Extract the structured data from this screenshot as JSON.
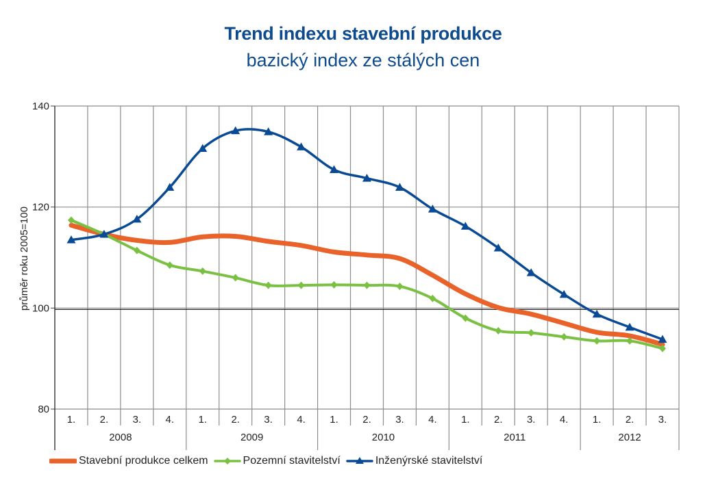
{
  "chart_data": {
    "type": "line",
    "title": "Trend indexu stavební produkce",
    "subtitle": "bazický index ze stálých cen",
    "ylabel": "průměr roku 2005=100",
    "xlabel": "",
    "ylim": [
      80,
      140
    ],
    "yticks": [
      80,
      100,
      120,
      140
    ],
    "grid": true,
    "legend_position": "bottom-left",
    "categories": [
      "1.",
      "2.",
      "3.",
      "4.",
      "1.",
      "2.",
      "3.",
      "4.",
      "1.",
      "2.",
      "3.",
      "4.",
      "1.",
      "2.",
      "3.",
      "4.",
      "1.",
      "2.",
      "3."
    ],
    "groups": [
      {
        "label": "2008",
        "count": 4
      },
      {
        "label": "2009",
        "count": 4
      },
      {
        "label": "2010",
        "count": 4
      },
      {
        "label": "2011",
        "count": 4
      },
      {
        "label": "2012",
        "count": 3
      }
    ],
    "series": [
      {
        "name": "Stavební produkce celkem",
        "color": "#e8622a",
        "marker": "none",
        "values": [
          116.4,
          114.6,
          113.4,
          113.0,
          114.1,
          114.2,
          113.2,
          112.4,
          111.1,
          110.5,
          109.8,
          106.5,
          102.8,
          100.1,
          98.8,
          97.0,
          95.2,
          94.5,
          92.8
        ]
      },
      {
        "name": "Pozemní stavitelství",
        "color": "#7ac143",
        "marker": "diamond",
        "values": [
          117.4,
          114.6,
          111.4,
          108.5,
          107.3,
          106.0,
          104.5,
          104.5,
          104.6,
          104.5,
          104.3,
          101.9,
          98.0,
          95.5,
          95.1,
          94.3,
          93.5,
          93.5,
          92.0
        ]
      },
      {
        "name": "Inženýrské stavitelství",
        "color": "#0a4a94",
        "marker": "triangle",
        "values": [
          113.5,
          114.6,
          117.6,
          123.9,
          131.6,
          135.1,
          134.9,
          131.9,
          127.4,
          125.7,
          123.9,
          119.6,
          116.2,
          111.9,
          107.0,
          102.7,
          98.8,
          96.2,
          93.8
        ]
      }
    ]
  }
}
